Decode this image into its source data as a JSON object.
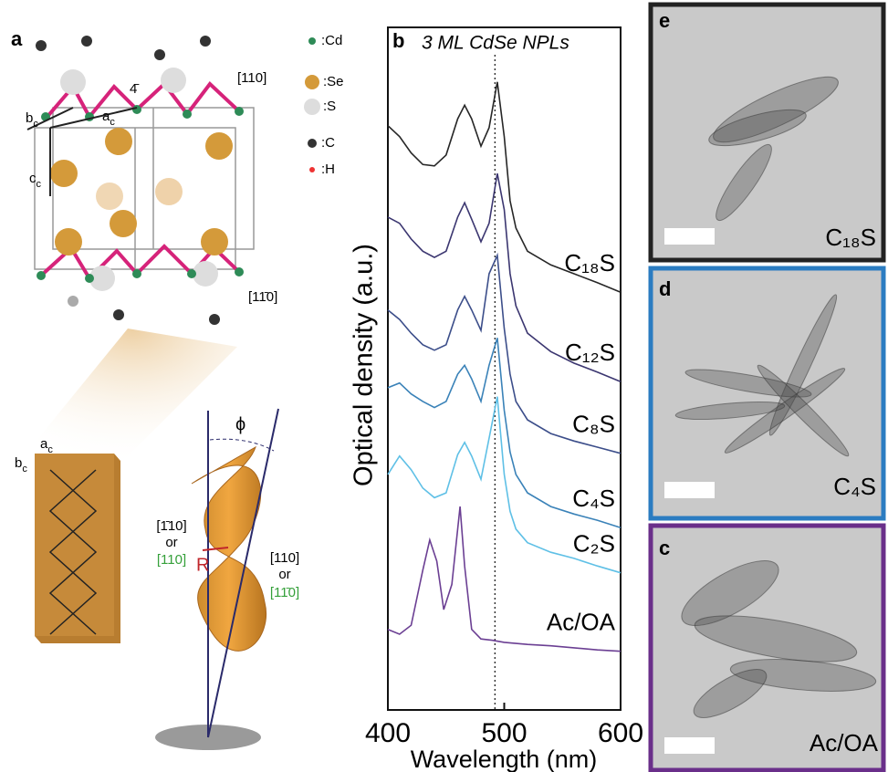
{
  "panel_a": {
    "label": "a",
    "legend": [
      ":Cd",
      ":Se",
      ":S",
      ":C",
      ":H"
    ],
    "lattice": {
      "b": {
        "base": "b",
        "sub": "c"
      },
      "a": {
        "base": "a",
        "sub": "c"
      },
      "c": {
        "base": "c",
        "sub": "c"
      },
      "four_bar": "4̄"
    },
    "dir_top": "[110]",
    "dir_bottom": "[11̄0]",
    "slab": {
      "a": {
        "base": "a",
        "sub": "c"
      },
      "b": {
        "base": "b",
        "sub": "c"
      }
    },
    "helix": {
      "phi": "ϕ",
      "left": [
        "[1̄10]",
        "or",
        "[110]"
      ],
      "right": [
        "[110]",
        "or",
        "[11̄0]"
      ],
      "radius": "R"
    }
  },
  "chart_data": {
    "type": "line",
    "label": "b",
    "title": "3 ML CdSe NPLs",
    "x_label": "Wavelength (nm)",
    "y_label": "Optical density (a.u.)",
    "xlim": [
      400,
      600
    ],
    "xticks": [
      400,
      500,
      600
    ],
    "ylim": [
      0,
      100
    ],
    "reference_line": 492,
    "series": [
      {
        "name": "C₁₈S",
        "color": "#262626",
        "x": [
          400,
          410,
          420,
          430,
          440,
          450,
          460,
          466,
          472,
          480,
          487,
          494,
          500,
          505,
          510,
          520,
          540,
          560,
          580,
          600
        ],
        "values": [
          85.6,
          84.0,
          81.6,
          79.9,
          79.7,
          81.3,
          86.6,
          88.6,
          86.6,
          82.6,
          85.3,
          92.0,
          84.0,
          74.6,
          70.6,
          67.2,
          65.2,
          63.9,
          62.6,
          61.2
        ]
      },
      {
        "name": "C₁₂S",
        "color": "#3b3670",
        "x": [
          400,
          410,
          420,
          430,
          440,
          450,
          460,
          466,
          472,
          480,
          487,
          494,
          500,
          505,
          510,
          520,
          540,
          560,
          580,
          600
        ],
        "values": [
          72.2,
          71.3,
          69.0,
          67.2,
          66.3,
          67.2,
          72.2,
          74.3,
          71.9,
          68.6,
          71.3,
          78.6,
          73.3,
          63.9,
          59.2,
          55.2,
          52.5,
          50.8,
          49.5,
          48.1
        ]
      },
      {
        "name": "C₈S",
        "color": "#3c4e8a",
        "x": [
          400,
          410,
          420,
          430,
          440,
          450,
          460,
          466,
          472,
          480,
          487,
          494,
          500,
          505,
          510,
          520,
          540,
          560,
          580,
          600
        ],
        "values": [
          58.6,
          57.2,
          55.2,
          53.5,
          52.7,
          53.5,
          58.6,
          60.6,
          58.6,
          55.6,
          63.9,
          66.6,
          55.9,
          49.2,
          45.2,
          42.5,
          40.5,
          39.4,
          38.5,
          37.6
        ]
      },
      {
        "name": "C₄S",
        "color": "#3a82b8",
        "x": [
          400,
          410,
          420,
          430,
          440,
          450,
          460,
          466,
          472,
          480,
          487,
          494,
          500,
          505,
          510,
          520,
          540,
          560,
          580,
          600
        ],
        "values": [
          47.2,
          47.9,
          46.3,
          45.2,
          44.3,
          45.2,
          49.2,
          50.5,
          48.5,
          45.2,
          50.5,
          54.5,
          43.9,
          37.8,
          34.5,
          31.8,
          29.8,
          28.7,
          27.8,
          26.7
        ]
      },
      {
        "name": "C₂S",
        "color": "#5fc0e6",
        "x": [
          400,
          410,
          420,
          430,
          440,
          450,
          460,
          466,
          472,
          480,
          487,
          494,
          500,
          505,
          510,
          520,
          540,
          560,
          580,
          600
        ],
        "values": [
          34.5,
          37.2,
          35.2,
          32.5,
          31.1,
          31.8,
          37.4,
          39.2,
          37.2,
          33.8,
          39.8,
          45.9,
          34.5,
          29.1,
          26.5,
          24.5,
          23.1,
          22.2,
          21.1,
          20.1
        ]
      },
      {
        "name": "Ac/OA",
        "color": "#6b3f93",
        "x": [
          400,
          410,
          420,
          430,
          436,
          442,
          448,
          455,
          462,
          466,
          472,
          480,
          490,
          500,
          520,
          540,
          560,
          580,
          600
        ],
        "values": [
          11.8,
          11.1,
          12.4,
          20.5,
          24.9,
          21.8,
          14.7,
          18.4,
          29.8,
          21.1,
          11.8,
          10.4,
          10.2,
          9.9,
          9.6,
          9.4,
          9.1,
          8.8,
          8.6
        ]
      }
    ]
  },
  "panel_e": {
    "label": "e",
    "sample": "C₁₈S"
  },
  "panel_d": {
    "label": "d",
    "sample": "C₄S"
  },
  "panel_c": {
    "label": "c",
    "sample": "Ac/OA"
  }
}
